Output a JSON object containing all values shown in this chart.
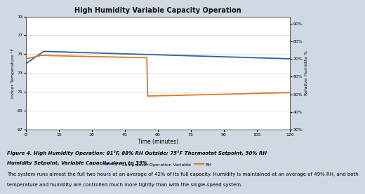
{
  "title": "High Humidity Variable Capacity Operation",
  "xlabel": "Time (minutes)",
  "ylabel_left": "Indoor Temperature °F",
  "ylabel_right": "Relative Humidity %",
  "x_ticks": [
    0,
    15,
    30,
    45,
    60,
    75,
    90,
    105,
    120
  ],
  "ylim_left": [
    67,
    79
  ],
  "ylim_right": [
    30,
    94
  ],
  "yticks_left": [
    67,
    69,
    71,
    73,
    75,
    77,
    79
  ],
  "yticks_right": [
    30,
    40,
    50,
    60,
    70,
    80,
    90
  ],
  "bg_color": "#ffffff",
  "outer_bg": "#cfd8e3",
  "grid_color": "#d0d0d0",
  "line_blue_color": "#2e5fa3",
  "line_orange_color": "#e07820",
  "line_gray_color": "#b0b0b0",
  "legend_labels": [
    "T - Compressor Operation Variable",
    "RH"
  ],
  "caption_line1": "Figure 4. High Humidity Operation: 81°F, 88% RH Outside; 75°F Thermostat Setpoint, 50% RH",
  "caption_line2": "Humidity Setpoint, Variable Capacity down to 35%.",
  "caption_line3": "The system runs almost the full two hours at an average of 42% of its full capacity. Humidity is maintained at an average of 49% RH, and both",
  "caption_line4": "temperature and humidity are controlled much more tightly than with the single-speed system."
}
